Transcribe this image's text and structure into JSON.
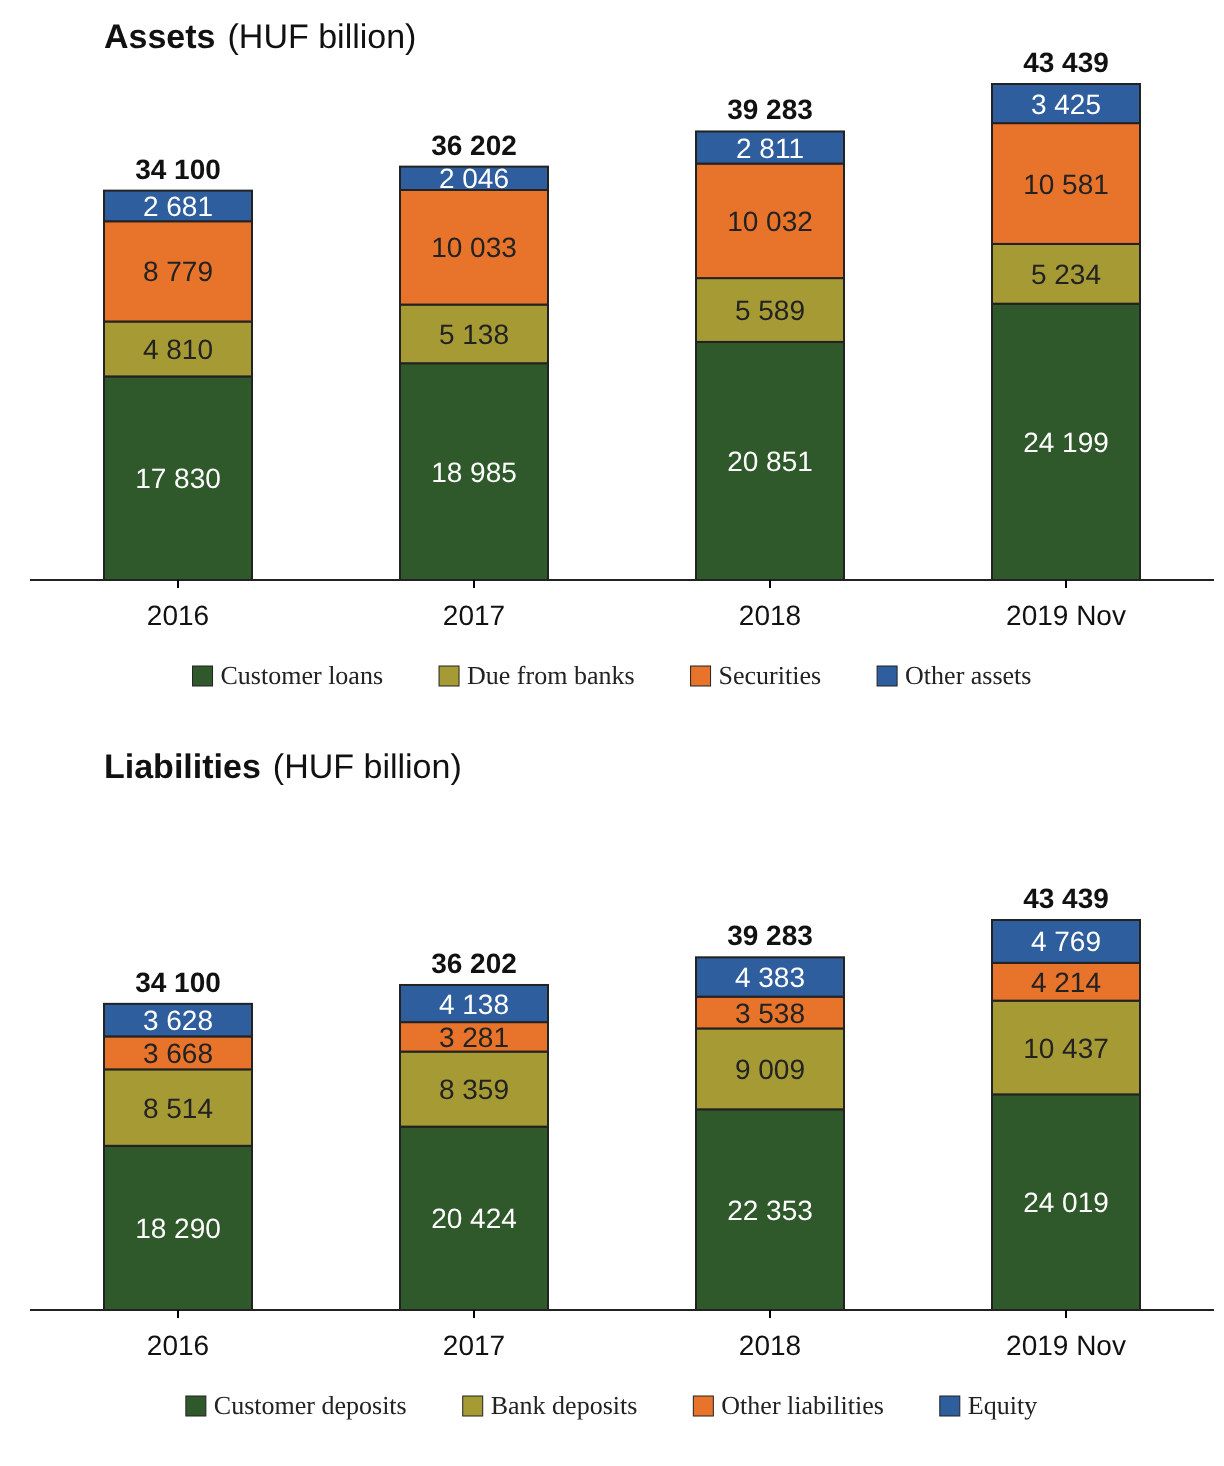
{
  "chart_data": [
    {
      "type": "bar",
      "title": "Assets",
      "subtitle": "(HUF  billion)",
      "stacked": true,
      "legend": "bottom",
      "tick_labels": "x",
      "categories": [
        "2016",
        "2017",
        "2018",
        "2019 Nov"
      ],
      "series": [
        {
          "name": "Customer loans",
          "color": "#30592b",
          "values": [
            17830,
            18985,
            20851,
            24199
          ],
          "value_labels": [
            "17 830",
            "18 985",
            "20 851",
            "24 199"
          ]
        },
        {
          "name": "Due from banks",
          "color": "#a69a35",
          "values": [
            4810,
            5138,
            5589,
            5234
          ],
          "value_labels": [
            "4 810",
            "5 138",
            "5 589",
            "5 234"
          ]
        },
        {
          "name": "Securities",
          "color": "#e8732a",
          "values": [
            8779,
            10033,
            10032,
            10581
          ],
          "value_labels": [
            "8 779",
            "10 033",
            "10 032",
            "10 581"
          ]
        },
        {
          "name": "Other assets",
          "color": "#2f5e9e",
          "values": [
            2681,
            2046,
            2811,
            3425
          ],
          "value_labels": [
            "2 681",
            "2 046",
            "2 811",
            "3 425"
          ]
        }
      ],
      "totals": [
        "34 100",
        "36 202",
        "39 283",
        "43 439"
      ]
    },
    {
      "type": "bar",
      "title": "Liabilities",
      "subtitle": "(HUF  billion)",
      "stacked": true,
      "legend": "bottom",
      "tick_labels": "x",
      "categories": [
        "2016",
        "2017",
        "2018",
        "2019 Nov"
      ],
      "series": [
        {
          "name": "Customer deposits",
          "color": "#30592b",
          "values": [
            18290,
            20424,
            22353,
            24019
          ],
          "value_labels": [
            "18 290",
            "20 424",
            "22 353",
            "24 019"
          ]
        },
        {
          "name": "Bank deposits",
          "color": "#a69a35",
          "values": [
            8514,
            8359,
            9009,
            10437
          ],
          "value_labels": [
            "8 514",
            "8 359",
            "9 009",
            "10 437"
          ]
        },
        {
          "name": "Other liabilities",
          "color": "#e8732a",
          "values": [
            3668,
            3281,
            3538,
            4214
          ],
          "value_labels": [
            "3 668",
            "3 281",
            "3 538",
            "4 214"
          ]
        },
        {
          "name": "Equity",
          "color": "#2f5e9e",
          "values": [
            3628,
            4138,
            4383,
            4769
          ],
          "value_labels": [
            "3 628",
            "4 138",
            "4 383",
            "4 769"
          ]
        }
      ],
      "totals": [
        "34 100",
        "36 202",
        "39 283",
        "43 439"
      ]
    }
  ]
}
